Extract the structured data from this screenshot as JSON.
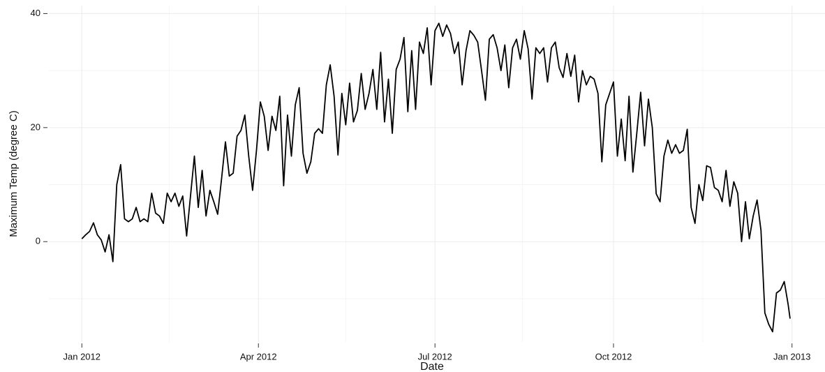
{
  "chart_data": {
    "type": "line",
    "xlabel": "Date",
    "ylabel": "Maximum Temp (degree C)",
    "x": [
      0,
      2,
      4,
      6,
      8,
      10,
      12,
      14,
      16,
      18,
      20,
      22,
      24,
      26,
      28,
      30,
      32,
      34,
      36,
      38,
      40,
      42,
      44,
      46,
      48,
      50,
      52,
      54,
      56,
      58,
      60,
      62,
      64,
      66,
      68,
      70,
      72,
      74,
      76,
      78,
      80,
      82,
      84,
      86,
      88,
      90,
      92,
      94,
      96,
      98,
      100,
      102,
      104,
      106,
      108,
      110,
      112,
      114,
      116,
      118,
      120,
      122,
      124,
      126,
      128,
      130,
      132,
      134,
      136,
      138,
      140,
      142,
      144,
      146,
      148,
      150,
      152,
      154,
      156,
      158,
      160,
      162,
      164,
      166,
      168,
      170,
      172,
      174,
      176,
      178,
      180,
      182,
      184,
      186,
      188,
      190,
      192,
      194,
      196,
      198,
      200,
      202,
      204,
      206,
      208,
      210,
      212,
      214,
      216,
      218,
      220,
      222,
      224,
      226,
      228,
      230,
      232,
      234,
      236,
      238,
      240,
      242,
      244,
      246,
      248,
      250,
      252,
      254,
      256,
      258,
      260,
      262,
      264,
      266,
      268,
      270,
      272,
      274,
      276,
      278,
      280,
      282,
      284,
      286,
      288,
      290,
      292,
      294,
      296,
      298,
      300,
      302,
      304,
      306,
      308,
      310,
      312,
      314,
      316,
      318,
      320,
      322,
      324,
      326,
      328,
      330,
      332,
      334,
      336,
      338,
      340,
      342,
      344,
      346,
      348,
      350,
      352,
      354,
      356,
      358,
      360,
      362,
      364,
      365
    ],
    "values": [
      0.5,
      1.2,
      1.8,
      3.3,
      1.2,
      0.3,
      -1.8,
      1.2,
      -3.5,
      10,
      13.5,
      4,
      3.5,
      4,
      6,
      3.5,
      4,
      3.5,
      8.5,
      5,
      4.5,
      3.2,
      8.5,
      7,
      8.5,
      6.2,
      8,
      1,
      8,
      15,
      6,
      12.5,
      4.5,
      9,
      7,
      4.8,
      11,
      17.5,
      11.5,
      12,
      18.5,
      19.5,
      22.2,
      15,
      9,
      16,
      24.5,
      22,
      16,
      22,
      19.5,
      25.5,
      9.8,
      22.2,
      15,
      24,
      27,
      15.5,
      12,
      14,
      19,
      19.8,
      19,
      27.5,
      31,
      25.5,
      15.2,
      26,
      20.5,
      27.8,
      21,
      23,
      29.5,
      23.2,
      26,
      30.2,
      23.2,
      33.2,
      21,
      28.5,
      19,
      30.2,
      32,
      35.8,
      22.8,
      33.5,
      23.2,
      35,
      33,
      37.5,
      27.5,
      37,
      38.3,
      36,
      38,
      36.5,
      33,
      35,
      27.5,
      33.5,
      37,
      36.2,
      35,
      30,
      24.8,
      35.5,
      36.3,
      34,
      30,
      34.5,
      27,
      34,
      35.5,
      32,
      37,
      33.8,
      25,
      34,
      33,
      34,
      28,
      34,
      35,
      30.5,
      28.8,
      33,
      29,
      32.7,
      24.5,
      30,
      27.5,
      29,
      28.5,
      26,
      14,
      24,
      26,
      28,
      15,
      21.5,
      14.2,
      25.5,
      12.2,
      19,
      26.2,
      16.8,
      25,
      20,
      8.4,
      7,
      15,
      17.8,
      15.5,
      17,
      15.5,
      16,
      19.7,
      6,
      3.2,
      10,
      7.2,
      13.3,
      13,
      9.5,
      9,
      7,
      12.5,
      6.2,
      10.5,
      8.5,
      0,
      7,
      0.5,
      4.5,
      7.3,
      2,
      -12.5,
      -14.5,
      -15.8,
      -9,
      -8.5,
      -7,
      -11,
      -13.5
    ],
    "color": "#000000",
    "xlim": [
      -17,
      383
    ],
    "xticks": [
      {
        "value": 0,
        "label": "Jan 2012"
      },
      {
        "value": 91,
        "label": "Apr 2012"
      },
      {
        "value": 182,
        "label": "Jul 2012"
      },
      {
        "value": 274,
        "label": "Oct 2012"
      },
      {
        "value": 366,
        "label": "Jan 2013"
      }
    ],
    "minor_xticks": [
      45,
      136,
      227,
      320
    ],
    "ylim": [
      -17.6,
      41.4
    ],
    "yticks": [
      0,
      20,
      40
    ],
    "minor_yticks": [
      -10,
      10,
      30
    ],
    "grid": true
  }
}
